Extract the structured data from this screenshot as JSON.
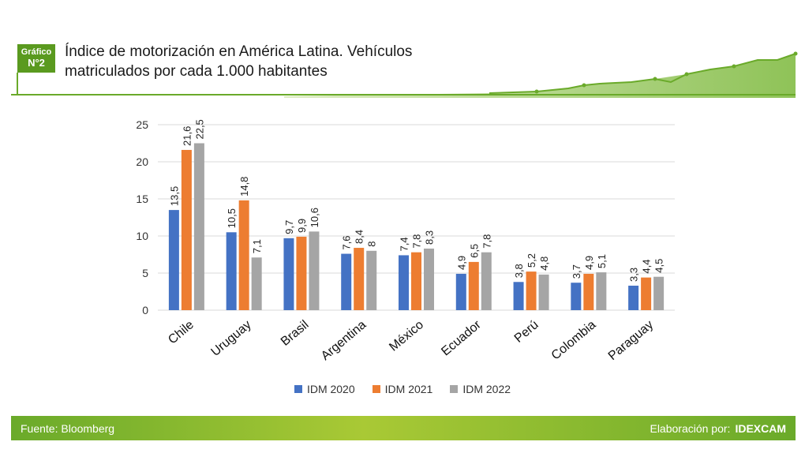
{
  "header": {
    "badge_line1": "Gráfico",
    "badge_line2": "N°2",
    "title": "Índice de motorización en América Latina. Vehículos matriculados por cada 1.000 habitantes"
  },
  "footer": {
    "source": "Fuente: Bloomberg",
    "credit_prefix": "Elaboración por:",
    "credit_name": "IDEXCAM"
  },
  "colors": {
    "IDM 2020": "#4472c4",
    "IDM 2021": "#ed7d31",
    "IDM 2022": "#a5a5a5",
    "brand_green": "#6aaa2a"
  },
  "chart_data": {
    "type": "bar",
    "title": "",
    "xlabel": "",
    "ylabel": "",
    "ylim": [
      0,
      25
    ],
    "yticks": [
      "0",
      "5",
      "10",
      "15",
      "20",
      "25"
    ],
    "grid": true,
    "legend_position": "bottom",
    "categories": [
      "Chile",
      "Uruguay",
      "Brasil",
      "Argentina",
      "México",
      "Ecuador",
      "Perú",
      "Colombia",
      "Paraguay"
    ],
    "series": [
      {
        "name": "IDM 2020",
        "values": [
          13.5,
          10.5,
          9.7,
          7.6,
          7.4,
          4.9,
          3.8,
          3.7,
          3.3
        ],
        "labels": [
          "13,5",
          "10,5",
          "9,7",
          "7,6",
          "7,4",
          "4,9",
          "3,8",
          "3,7",
          "3,3"
        ]
      },
      {
        "name": "IDM 2021",
        "values": [
          21.6,
          14.8,
          9.9,
          8.4,
          7.8,
          6.5,
          5.2,
          4.9,
          4.4
        ],
        "labels": [
          "21,6",
          "14,8",
          "9,9",
          "8,4",
          "7,8",
          "6,5",
          "5,2",
          "4,9",
          "4,4"
        ]
      },
      {
        "name": "IDM 2022",
        "values": [
          22.5,
          7.1,
          10.6,
          8.0,
          8.3,
          7.8,
          4.8,
          5.1,
          4.5
        ],
        "labels": [
          "22,5",
          "7,1",
          "10,6",
          "8",
          "8,3",
          "7,8",
          "4,8",
          "5,1",
          "4,5"
        ]
      }
    ]
  }
}
